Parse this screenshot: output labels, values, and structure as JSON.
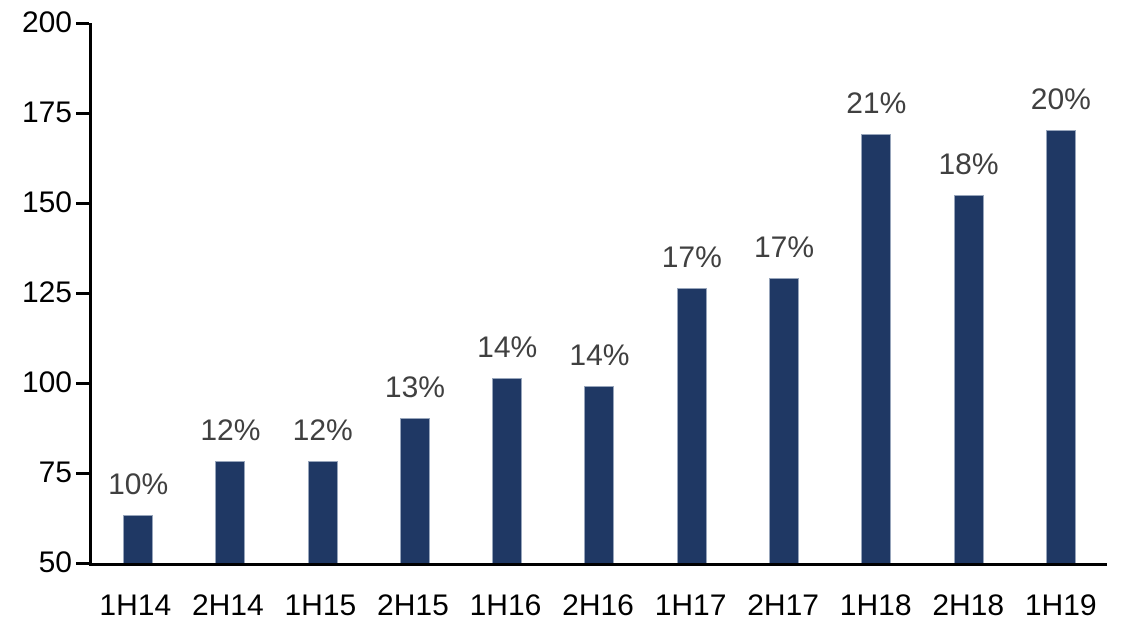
{
  "chart_data": {
    "type": "bar",
    "categories": [
      "1H14",
      "2H14",
      "1H15",
      "2H15",
      "1H16",
      "2H16",
      "1H17",
      "2H17",
      "1H18",
      "2H18",
      "1H19"
    ],
    "values": [
      63,
      78,
      78,
      90,
      101,
      99,
      126,
      129,
      169,
      152,
      170
    ],
    "bar_labels": [
      "10%",
      "12%",
      "12%",
      "13%",
      "14%",
      "14%",
      "17%",
      "17%",
      "21%",
      "18%",
      "20%"
    ],
    "ylim": [
      50,
      200
    ],
    "y_ticks": [
      200,
      175,
      150,
      125,
      100,
      75,
      50
    ],
    "grid": false,
    "legend_position": "none",
    "colors": {
      "bar_fill": "#1f3864",
      "bar_border": "#97a5bb",
      "data_label": "#404040",
      "axis_line": "#000000",
      "axis_text": "#000000",
      "background": "#ffffff"
    }
  }
}
